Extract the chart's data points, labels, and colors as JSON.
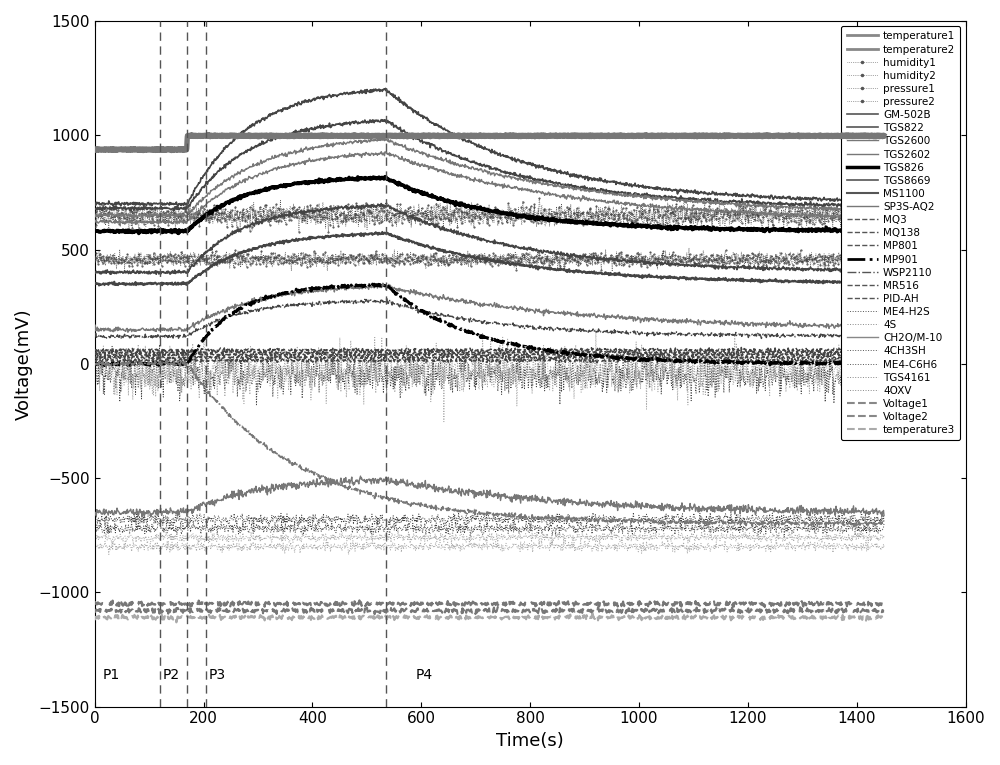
{
  "title": "",
  "xlabel": "Time(s)",
  "ylabel": "Voltage(mV)",
  "xlim": [
    0,
    1600
  ],
  "ylim": [
    -1500,
    1500
  ],
  "xticks": [
    0,
    200,
    400,
    600,
    800,
    1000,
    1200,
    1400,
    1600
  ],
  "yticks": [
    -1500,
    -1000,
    -500,
    0,
    500,
    1000,
    1500
  ],
  "vlines": [
    120,
    170,
    205,
    535
  ],
  "background_color": "#ffffff",
  "figsize": [
    10.0,
    7.65
  ],
  "dpi": 100,
  "legend_entries": [
    {
      "label": "temperature1",
      "color": "#888888",
      "lw": 2.0,
      "ls": "-",
      "marker": ""
    },
    {
      "label": "temperature2",
      "color": "#888888",
      "lw": 2.0,
      "ls": "-",
      "marker": ""
    },
    {
      "label": "humidity1",
      "color": "#555555",
      "lw": 0.5,
      "ls": ":",
      "marker": "."
    },
    {
      "label": "humidity2",
      "color": "#555555",
      "lw": 0.5,
      "ls": ":",
      "marker": "."
    },
    {
      "label": "pressure1",
      "color": "#555555",
      "lw": 0.5,
      "ls": ":",
      "marker": "."
    },
    {
      "label": "pressure2",
      "color": "#555555",
      "lw": 0.5,
      "ls": ":",
      "marker": "."
    },
    {
      "label": "GM-502B",
      "color": "#555555",
      "lw": 1.2,
      "ls": "-",
      "marker": ""
    },
    {
      "label": "TGS822",
      "color": "#555555",
      "lw": 1.2,
      "ls": "-",
      "marker": ""
    },
    {
      "label": "TGS2600",
      "color": "#777777",
      "lw": 1.0,
      "ls": "-",
      "marker": ""
    },
    {
      "label": "TGS2602",
      "color": "#777777",
      "lw": 1.0,
      "ls": "-",
      "marker": ""
    },
    {
      "label": "TGS826",
      "color": "#000000",
      "lw": 2.5,
      "ls": "-",
      "marker": ""
    },
    {
      "label": "TGS8669",
      "color": "#555555",
      "lw": 1.2,
      "ls": "-",
      "marker": ""
    },
    {
      "label": "MS1100",
      "color": "#555555",
      "lw": 1.5,
      "ls": "-",
      "marker": ""
    },
    {
      "label": "SP3S-AQ2",
      "color": "#777777",
      "lw": 1.0,
      "ls": "-",
      "marker": ""
    },
    {
      "label": "MQ3",
      "color": "#555555",
      "lw": 1.0,
      "ls": "--",
      "marker": ""
    },
    {
      "label": "MQ138",
      "color": "#555555",
      "lw": 1.0,
      "ls": "--",
      "marker": ""
    },
    {
      "label": "MP801",
      "color": "#555555",
      "lw": 1.0,
      "ls": "--",
      "marker": ""
    },
    {
      "label": "MP901",
      "color": "#000000",
      "lw": 2.0,
      "ls": "-.",
      "marker": ""
    },
    {
      "label": "WSP2110",
      "color": "#555555",
      "lw": 1.0,
      "ls": "-.",
      "marker": ""
    },
    {
      "label": "MR516",
      "color": "#555555",
      "lw": 1.0,
      "ls": "--",
      "marker": ""
    },
    {
      "label": "PID-AH",
      "color": "#555555",
      "lw": 1.0,
      "ls": "--",
      "marker": ""
    },
    {
      "label": "ME4-H2S",
      "color": "#555555",
      "lw": 0.7,
      "ls": ":",
      "marker": ""
    },
    {
      "label": "4S",
      "color": "#888888",
      "lw": 0.7,
      "ls": ":",
      "marker": ""
    },
    {
      "label": "CH2O/M-10",
      "color": "#888888",
      "lw": 1.0,
      "ls": "-",
      "marker": ""
    },
    {
      "label": "4CH3SH",
      "color": "#555555",
      "lw": 0.7,
      "ls": ":",
      "marker": ""
    },
    {
      "label": "ME4-C6H6",
      "color": "#555555",
      "lw": 0.7,
      "ls": ":",
      "marker": ""
    },
    {
      "label": "TGS4161",
      "color": "#888888",
      "lw": 0.7,
      "ls": ":",
      "marker": ""
    },
    {
      "label": "4OXV",
      "color": "#888888",
      "lw": 0.7,
      "ls": ":",
      "marker": ""
    },
    {
      "label": "Voltage1",
      "color": "#888888",
      "lw": 1.5,
      "ls": "--",
      "marker": ""
    },
    {
      "label": "Voltage2",
      "color": "#888888",
      "lw": 1.5,
      "ls": "--",
      "marker": ""
    },
    {
      "label": "temperature3",
      "color": "#aaaaaa",
      "lw": 1.5,
      "ls": "--",
      "marker": ""
    }
  ]
}
